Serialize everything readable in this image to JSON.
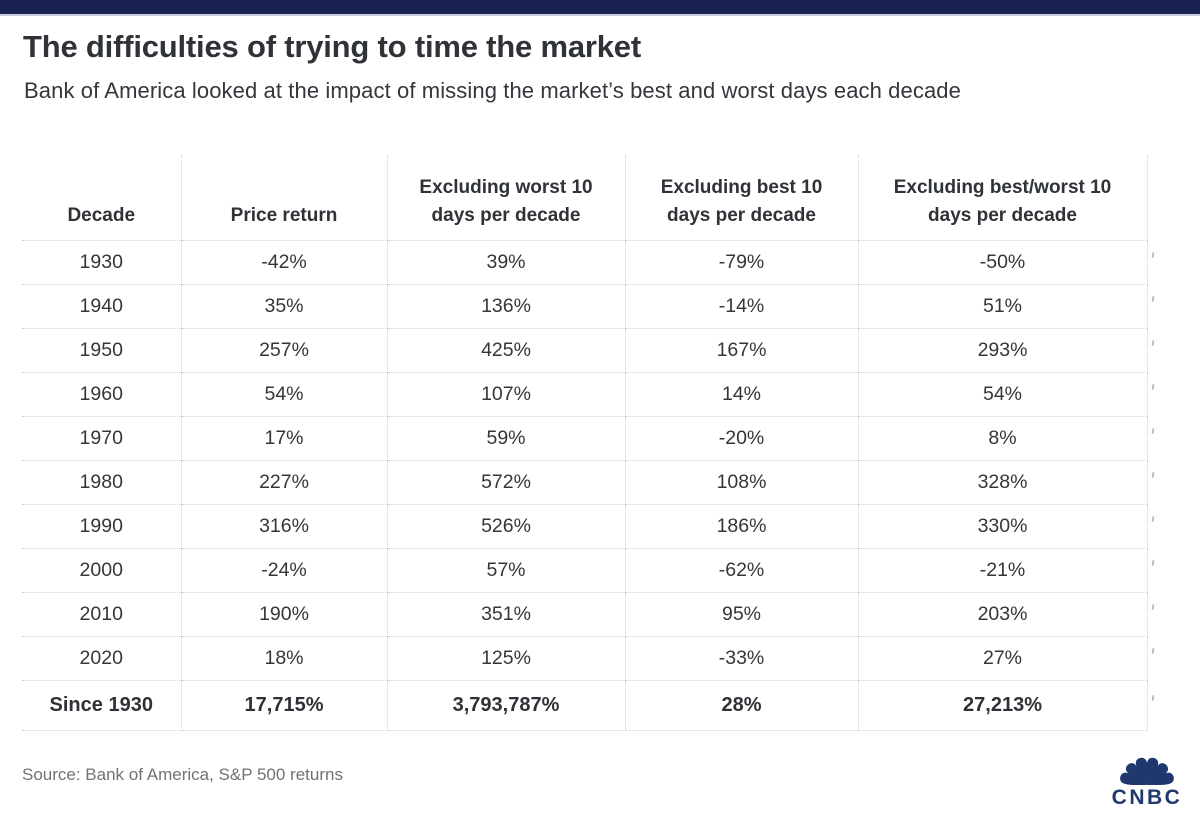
{
  "page": {
    "topbar_color": "#1a2153",
    "background": "#ffffff"
  },
  "chart_data": {
    "type": "table",
    "title": "The difficulties of trying to time the market",
    "subtitle": "Bank of America looked at the impact of missing the market’s best and worst days each decade",
    "columns": [
      "Decade",
      "Price return",
      "Excluding worst 10 days per decade",
      "Excluding best 10 days per decade",
      "Excluding best/worst 10 days per decade"
    ],
    "rows": [
      [
        "1930",
        "-42%",
        "39%",
        "-79%",
        "-50%"
      ],
      [
        "1940",
        "35%",
        "136%",
        "-14%",
        "51%"
      ],
      [
        "1950",
        "257%",
        "425%",
        "167%",
        "293%"
      ],
      [
        "1960",
        "54%",
        "107%",
        "14%",
        "54%"
      ],
      [
        "1970",
        "17%",
        "59%",
        "-20%",
        "8%"
      ],
      [
        "1980",
        "227%",
        "572%",
        "108%",
        "328%"
      ],
      [
        "1990",
        "316%",
        "526%",
        "186%",
        "330%"
      ],
      [
        "2000",
        "-24%",
        "57%",
        "-62%",
        "-21%"
      ],
      [
        "2010",
        "190%",
        "351%",
        "95%",
        "203%"
      ],
      [
        "2020",
        "18%",
        "125%",
        "-33%",
        "27%"
      ]
    ],
    "total_row": [
      "Since 1930",
      "17,715%",
      "3,793,787%",
      "28%",
      "27,213%"
    ],
    "source": "Source: Bank of America, S&P 500 returns",
    "layout": {
      "grid": "dotted",
      "total_row_bold": true
    }
  },
  "table": {
    "headers_display": [
      "Decade",
      "Price return",
      "Excluding worst 10\ndays per decade",
      "Excluding best 10\ndays per decade",
      "Excluding best/worst 10\ndays per decade"
    ]
  },
  "branding": {
    "logo_text": "CNBC",
    "logo_color": "#21386f"
  },
  "colors": {
    "topbar_navy": "#1a2153",
    "title_text": "#2f3237",
    "body_text": "#33363a",
    "source_text": "#6f7377",
    "grid_dotted": "#cfcfcf",
    "logo_navy": "#21386f"
  }
}
